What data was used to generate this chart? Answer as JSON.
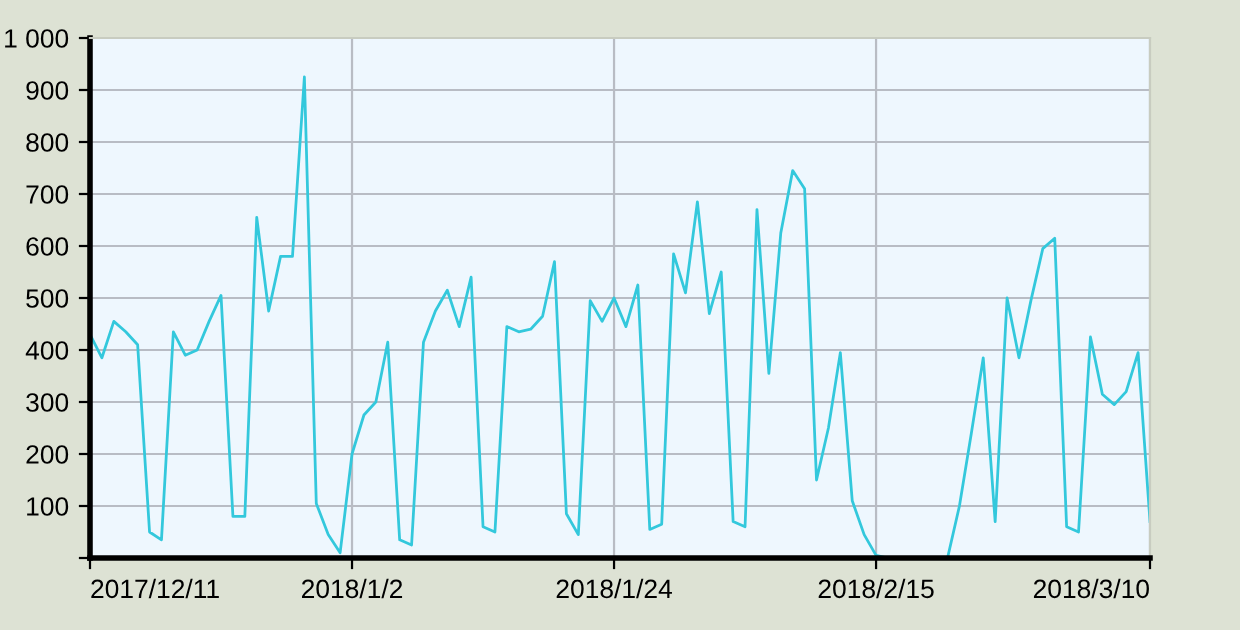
{
  "chart_data": {
    "type": "line",
    "x": [
      "2017-12-11",
      "2017-12-12",
      "2017-12-13",
      "2017-12-14",
      "2017-12-15",
      "2017-12-16",
      "2017-12-17",
      "2017-12-18",
      "2017-12-19",
      "2017-12-20",
      "2017-12-21",
      "2017-12-22",
      "2017-12-23",
      "2017-12-24",
      "2017-12-25",
      "2017-12-26",
      "2017-12-27",
      "2017-12-28",
      "2017-12-29",
      "2017-12-30",
      "2017-12-31",
      "2018-01-01",
      "2018-01-02",
      "2018-01-03",
      "2018-01-04",
      "2018-01-05",
      "2018-01-06",
      "2018-01-07",
      "2018-01-08",
      "2018-01-09",
      "2018-01-10",
      "2018-01-11",
      "2018-01-12",
      "2018-01-13",
      "2018-01-14",
      "2018-01-15",
      "2018-01-16",
      "2018-01-17",
      "2018-01-18",
      "2018-01-19",
      "2018-01-20",
      "2018-01-21",
      "2018-01-22",
      "2018-01-23",
      "2018-01-24",
      "2018-01-25",
      "2018-01-26",
      "2018-01-27",
      "2018-01-28",
      "2018-01-29",
      "2018-01-30",
      "2018-01-31",
      "2018-02-01",
      "2018-02-02",
      "2018-02-03",
      "2018-02-04",
      "2018-02-05",
      "2018-02-06",
      "2018-02-07",
      "2018-02-08",
      "2018-02-09",
      "2018-02-10",
      "2018-02-11",
      "2018-02-12",
      "2018-02-13",
      "2018-02-14",
      "2018-02-15",
      "2018-02-16",
      "2018-02-17",
      "2018-02-18",
      "2018-02-19",
      "2018-02-20",
      "2018-02-21",
      "2018-02-22",
      "2018-02-23",
      "2018-02-24",
      "2018-02-25",
      "2018-02-26",
      "2018-02-27",
      "2018-02-28",
      "2018-03-01",
      "2018-03-02",
      "2018-03-03",
      "2018-03-04",
      "2018-03-05",
      "2018-03-06",
      "2018-03-07",
      "2018-03-08",
      "2018-03-09",
      "2018-03-10"
    ],
    "series": [
      {
        "color": "#33c8dc",
        "values": [
          430,
          385,
          455,
          435,
          410,
          50,
          35,
          435,
          390,
          400,
          455,
          505,
          80,
          80,
          655,
          475,
          580,
          580,
          925,
          105,
          45,
          10,
          200,
          275,
          300,
          415,
          35,
          25,
          415,
          475,
          515,
          445,
          540,
          60,
          50,
          445,
          435,
          440,
          465,
          570,
          85,
          45,
          495,
          455,
          500,
          445,
          525,
          55,
          65,
          585,
          510,
          685,
          470,
          550,
          70,
          60,
          670,
          355,
          625,
          745,
          710,
          150,
          250,
          395,
          110,
          45,
          5,
          0,
          0,
          0,
          0,
          0,
          0,
          100,
          240,
          385,
          70,
          500,
          385,
          495,
          595,
          615,
          60,
          50,
          425,
          315,
          295,
          320,
          395,
          70
        ]
      }
    ],
    "xlim": [
      "2017-12-11",
      "2018-03-10"
    ],
    "xticks": [
      {
        "value": "2017-12-11",
        "label": "2017/12/11"
      },
      {
        "value": "2018-01-02",
        "label": "2018/1/2"
      },
      {
        "value": "2018-01-24",
        "label": "2018/1/24"
      },
      {
        "value": "2018-02-15",
        "label": "2018/2/15"
      },
      {
        "value": "2018-03-10",
        "label": "2018/3/10"
      }
    ],
    "ylim": [
      0,
      1000
    ],
    "yticks": [
      {
        "value": 0,
        "label": null
      },
      100,
      200,
      300,
      400,
      500,
      600,
      700,
      800,
      900,
      {
        "value": 1000,
        "label": "1 000"
      }
    ],
    "grid": true,
    "marker": "none",
    "line_style": "solid"
  }
}
